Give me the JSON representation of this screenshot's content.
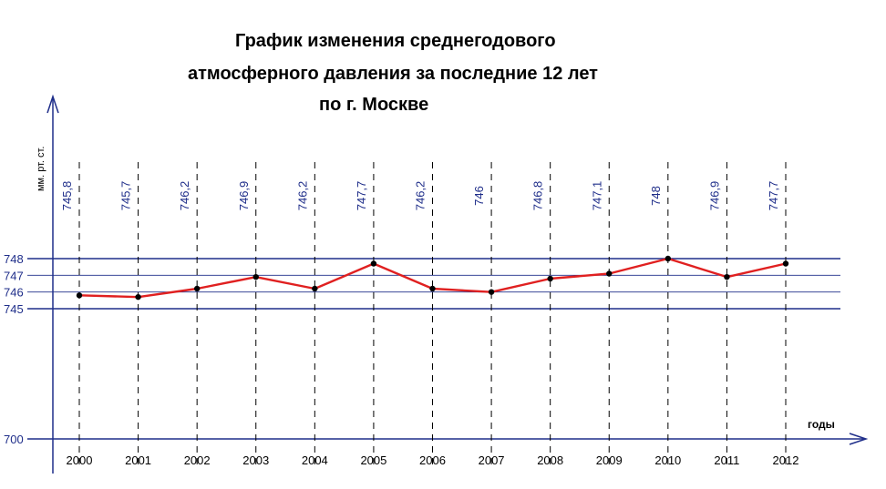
{
  "chart_data": {
    "type": "line",
    "title_lines": [
      "График изменения среднегодового",
      "атмосферного давления за последние 12 лет",
      "по  г. Москве"
    ],
    "ylabel": "мм. рт. ст.",
    "xlabel": "годы",
    "y_ticks": [
      {
        "value": 748,
        "label": "748"
      },
      {
        "value": 747,
        "label": "747"
      },
      {
        "value": 746,
        "label": "746"
      },
      {
        "value": 745,
        "label": "745"
      },
      {
        "value": 700,
        "label": "700"
      }
    ],
    "axis_break": "700 → 745",
    "categories": [
      "2000",
      "2001",
      "2002",
      "2003",
      "2004",
      "2005",
      "2006",
      "2007",
      "2008",
      "2009",
      "2010",
      "2011",
      "2012"
    ],
    "values": [
      745.8,
      745.7,
      746.2,
      746.9,
      746.2,
      747.7,
      746.2,
      746,
      746.8,
      747.1,
      748,
      746.9,
      747.7
    ],
    "value_labels": [
      "745,8",
      "745,7",
      "746,2",
      "746,9",
      "746,2",
      "747,7",
      "746,2",
      "746",
      "746,8",
      "747,1",
      "748",
      "746,9",
      "747,7"
    ],
    "colors": {
      "series_line": "#e02020",
      "points": "#000000",
      "value_labels": "#1f2e8a",
      "major_grid": "#1f2e8a",
      "minor_grid": "#1f2e8a",
      "axis": "#1f2e8a"
    }
  }
}
